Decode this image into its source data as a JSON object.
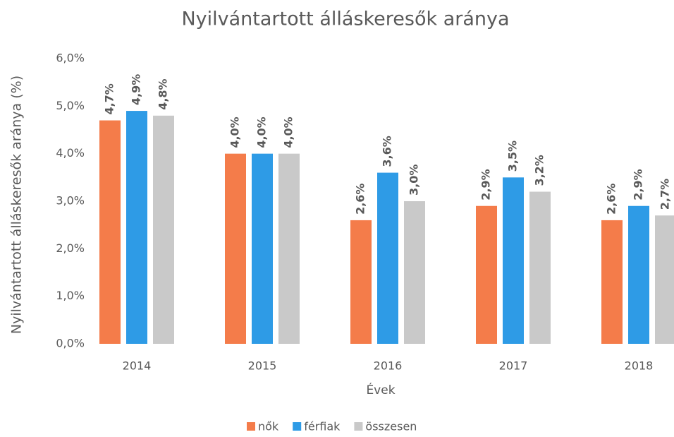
{
  "chart_data": {
    "type": "bar",
    "title": "Nyilvántartott álláskeresők aránya",
    "x_label": "Évek",
    "y_label": "Nyilvántartott álláskeresők aránya (%)",
    "categories": [
      "2014",
      "2015",
      "2016",
      "2017",
      "2018"
    ],
    "series": [
      {
        "name": "nők",
        "color": "#f47c4a",
        "values": [
          4.7,
          4.0,
          2.6,
          2.9,
          2.6
        ],
        "value_labels": [
          "4,7%",
          "4,0%",
          "2,6%",
          "2,9%",
          "2,6%"
        ]
      },
      {
        "name": "férfiak",
        "color": "#2e9be6",
        "values": [
          4.9,
          4.0,
          3.6,
          3.5,
          2.9
        ],
        "value_labels": [
          "4,9%",
          "4,0%",
          "3,6%",
          "3,5%",
          "2,9%"
        ]
      },
      {
        "name": "összesen",
        "color": "#c9c9c9",
        "values": [
          4.8,
          4.0,
          3.0,
          3.2,
          2.7
        ],
        "value_labels": [
          "4,8%",
          "4,0%",
          "3,0%",
          "3,2%",
          "2,7%"
        ]
      }
    ],
    "ylim": [
      0,
      6
    ],
    "yticks": [
      {
        "value": 0,
        "label": "0,0%"
      },
      {
        "value": 1,
        "label": "1,0%"
      },
      {
        "value": 2,
        "label": "2,0%"
      },
      {
        "value": 3,
        "label": "3,0%"
      },
      {
        "value": 4,
        "label": "4,0%"
      },
      {
        "value": 5,
        "label": "5,0%"
      },
      {
        "value": 6,
        "label": "6,0%"
      }
    ],
    "legend": "bottom"
  }
}
